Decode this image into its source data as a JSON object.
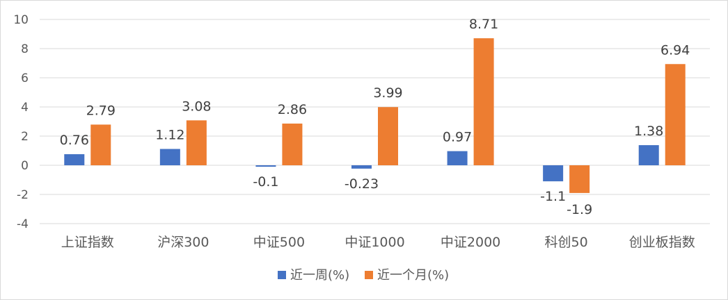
{
  "chart_data": {
    "type": "bar",
    "title": "",
    "xlabel": "",
    "ylabel": "",
    "categories": [
      "上证指数",
      "沪深300",
      "中证500",
      "中证1000",
      "中证2000",
      "科创50",
      "创业板指数"
    ],
    "series": [
      {
        "name": "近一周(%)",
        "values": [
          0.76,
          1.12,
          -0.1,
          -0.23,
          0.97,
          -1.1,
          1.38
        ],
        "color": "#4472C4"
      },
      {
        "name": "近一个月(%)",
        "values": [
          2.79,
          3.08,
          2.86,
          3.99,
          8.71,
          -1.9,
          6.94
        ],
        "color": "#ED7D31"
      }
    ],
    "ylim": [
      -4,
      10
    ],
    "yticks": [
      10,
      8,
      6,
      4,
      2,
      0,
      -2,
      -4
    ],
    "grid": true,
    "gridline_color": "#d9d9d9",
    "legend_position": "bottom"
  }
}
